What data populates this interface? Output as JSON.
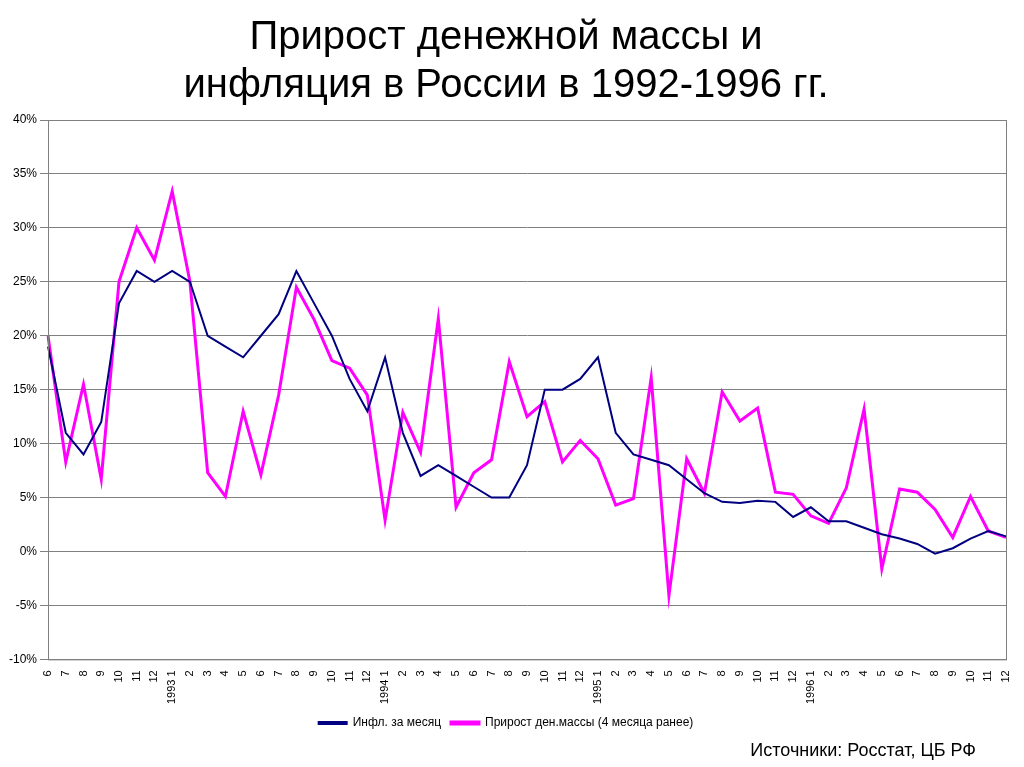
{
  "chart_data": {
    "type": "line",
    "title": [
      "Прирост денежной массы и",
      "инфляция в России в 1992-1996 гг."
    ],
    "categories": [
      "6",
      "7",
      "8",
      "9",
      "10",
      "11",
      "12",
      "1993 1",
      "2",
      "3",
      "4",
      "5",
      "6",
      "7",
      "8",
      "9",
      "10",
      "11",
      "12",
      "1994 1",
      "2",
      "3",
      "4",
      "5",
      "6",
      "7",
      "8",
      "9",
      "10",
      "11",
      "12",
      "1995 1",
      "2",
      "3",
      "4",
      "5",
      "6",
      "7",
      "8",
      "9",
      "10",
      "11",
      "12",
      "1996 1",
      "2",
      "3",
      "4",
      "5",
      "6",
      "7",
      "8",
      "9",
      "10",
      "11",
      "12"
    ],
    "series": [
      {
        "name": "Инфл. за месяц",
        "color": "#000080",
        "values": [
          19,
          11,
          9,
          12,
          23,
          26,
          25,
          26,
          25,
          20,
          19,
          18,
          20,
          22,
          26,
          23,
          20,
          16,
          13,
          18,
          11,
          7,
          8,
          7,
          6,
          5,
          5,
          8,
          15,
          15,
          16,
          18,
          11,
          9,
          8.5,
          8,
          6.7,
          5.4,
          4.6,
          4.5,
          4.7,
          4.6,
          3.2,
          4.1,
          2.8,
          2.8,
          2.2,
          1.6,
          1.2,
          0.7,
          -0.2,
          0.3,
          1.2,
          1.9,
          1.4
        ]
      },
      {
        "name": "Прирост ден.массы (4 месяца ранее)",
        "color": "#ff00ff",
        "values": [
          20,
          8.3,
          15.5,
          6.7,
          25,
          30,
          27,
          33.4,
          25,
          7.3,
          5.1,
          13,
          7.1,
          14.5,
          24.5,
          21.5,
          17.7,
          17,
          14.5,
          2.9,
          12.9,
          9.2,
          21.6,
          4.1,
          7.3,
          8.5,
          17.6,
          12.5,
          13.9,
          8.3,
          10.3,
          8.6,
          4.3,
          4.9,
          16.1,
          -4.1,
          8.6,
          5.4,
          14.8,
          12.1,
          13.3,
          5.5,
          5.3,
          3.3,
          2.6,
          5.9,
          13.2,
          -1.6,
          5.8,
          5.5,
          3.9,
          1.3,
          5.1,
          1.9,
          1.3
        ]
      }
    ],
    "ylim": [
      -10,
      40
    ],
    "yticks": [
      {
        "value": -10,
        "label": "-10%"
      },
      {
        "value": -5,
        "label": "-5%"
      },
      {
        "value": 0,
        "label": "0%"
      },
      {
        "value": 5,
        "label": "5%"
      },
      {
        "value": 10,
        "label": "10%"
      },
      {
        "value": 15,
        "label": "15%"
      },
      {
        "value": 20,
        "label": "20%"
      },
      {
        "value": 25,
        "label": "25%"
      },
      {
        "value": 30,
        "label": "30%"
      },
      {
        "value": 35,
        "label": "35%"
      },
      {
        "value": 40,
        "label": "40%"
      }
    ],
    "grid": true,
    "legend": "bottom",
    "annotations": [
      "Источники: Росстат, ЦБ РФ"
    ]
  }
}
